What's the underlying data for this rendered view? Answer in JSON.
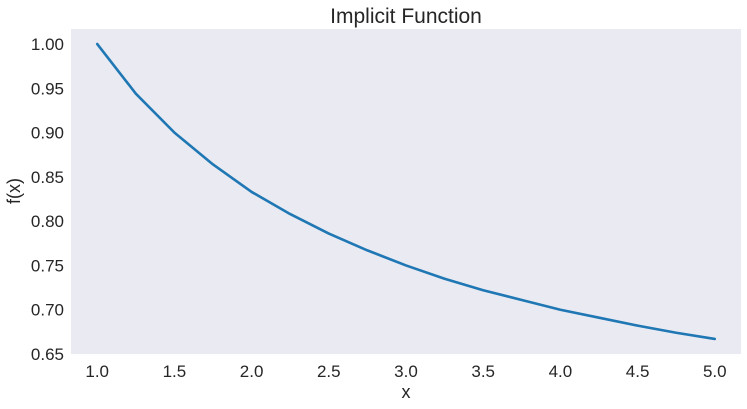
{
  "chart_data": {
    "type": "line",
    "title": "Implicit Function",
    "xlabel": "x",
    "ylabel": "f(x)",
    "xlim": [
      0.83,
      5.17
    ],
    "ylim": [
      0.65,
      1.017
    ],
    "grid": false,
    "legend": "none",
    "colors": {
      "plot_background": "#eaeaf2",
      "line": "#1f77b4",
      "text": "#262626"
    },
    "x_ticks": [
      1.0,
      1.5,
      2.0,
      2.5,
      3.0,
      3.5,
      4.0,
      4.5,
      5.0
    ],
    "x_tick_labels": [
      "1.0",
      "1.5",
      "2.0",
      "2.5",
      "3.0",
      "3.5",
      "4.0",
      "4.5",
      "5.0"
    ],
    "y_ticks": [
      0.65,
      0.7,
      0.75,
      0.8,
      0.85,
      0.9,
      0.95,
      1.0
    ],
    "y_tick_labels": [
      "0.65",
      "0.70",
      "0.75",
      "0.80",
      "0.85",
      "0.90",
      "0.95",
      "1.00"
    ],
    "series": [
      {
        "x": [
          1.0,
          1.25,
          1.5,
          1.75,
          2.0,
          2.25,
          2.5,
          2.75,
          3.0,
          3.25,
          3.5,
          3.75,
          4.0,
          4.25,
          4.5,
          4.75,
          5.0
        ],
        "y": [
          1.0,
          0.944,
          0.9,
          0.864,
          0.833,
          0.808,
          0.786,
          0.767,
          0.75,
          0.735,
          0.722,
          0.711,
          0.7,
          0.691,
          0.682,
          0.674,
          0.667
        ]
      }
    ]
  }
}
